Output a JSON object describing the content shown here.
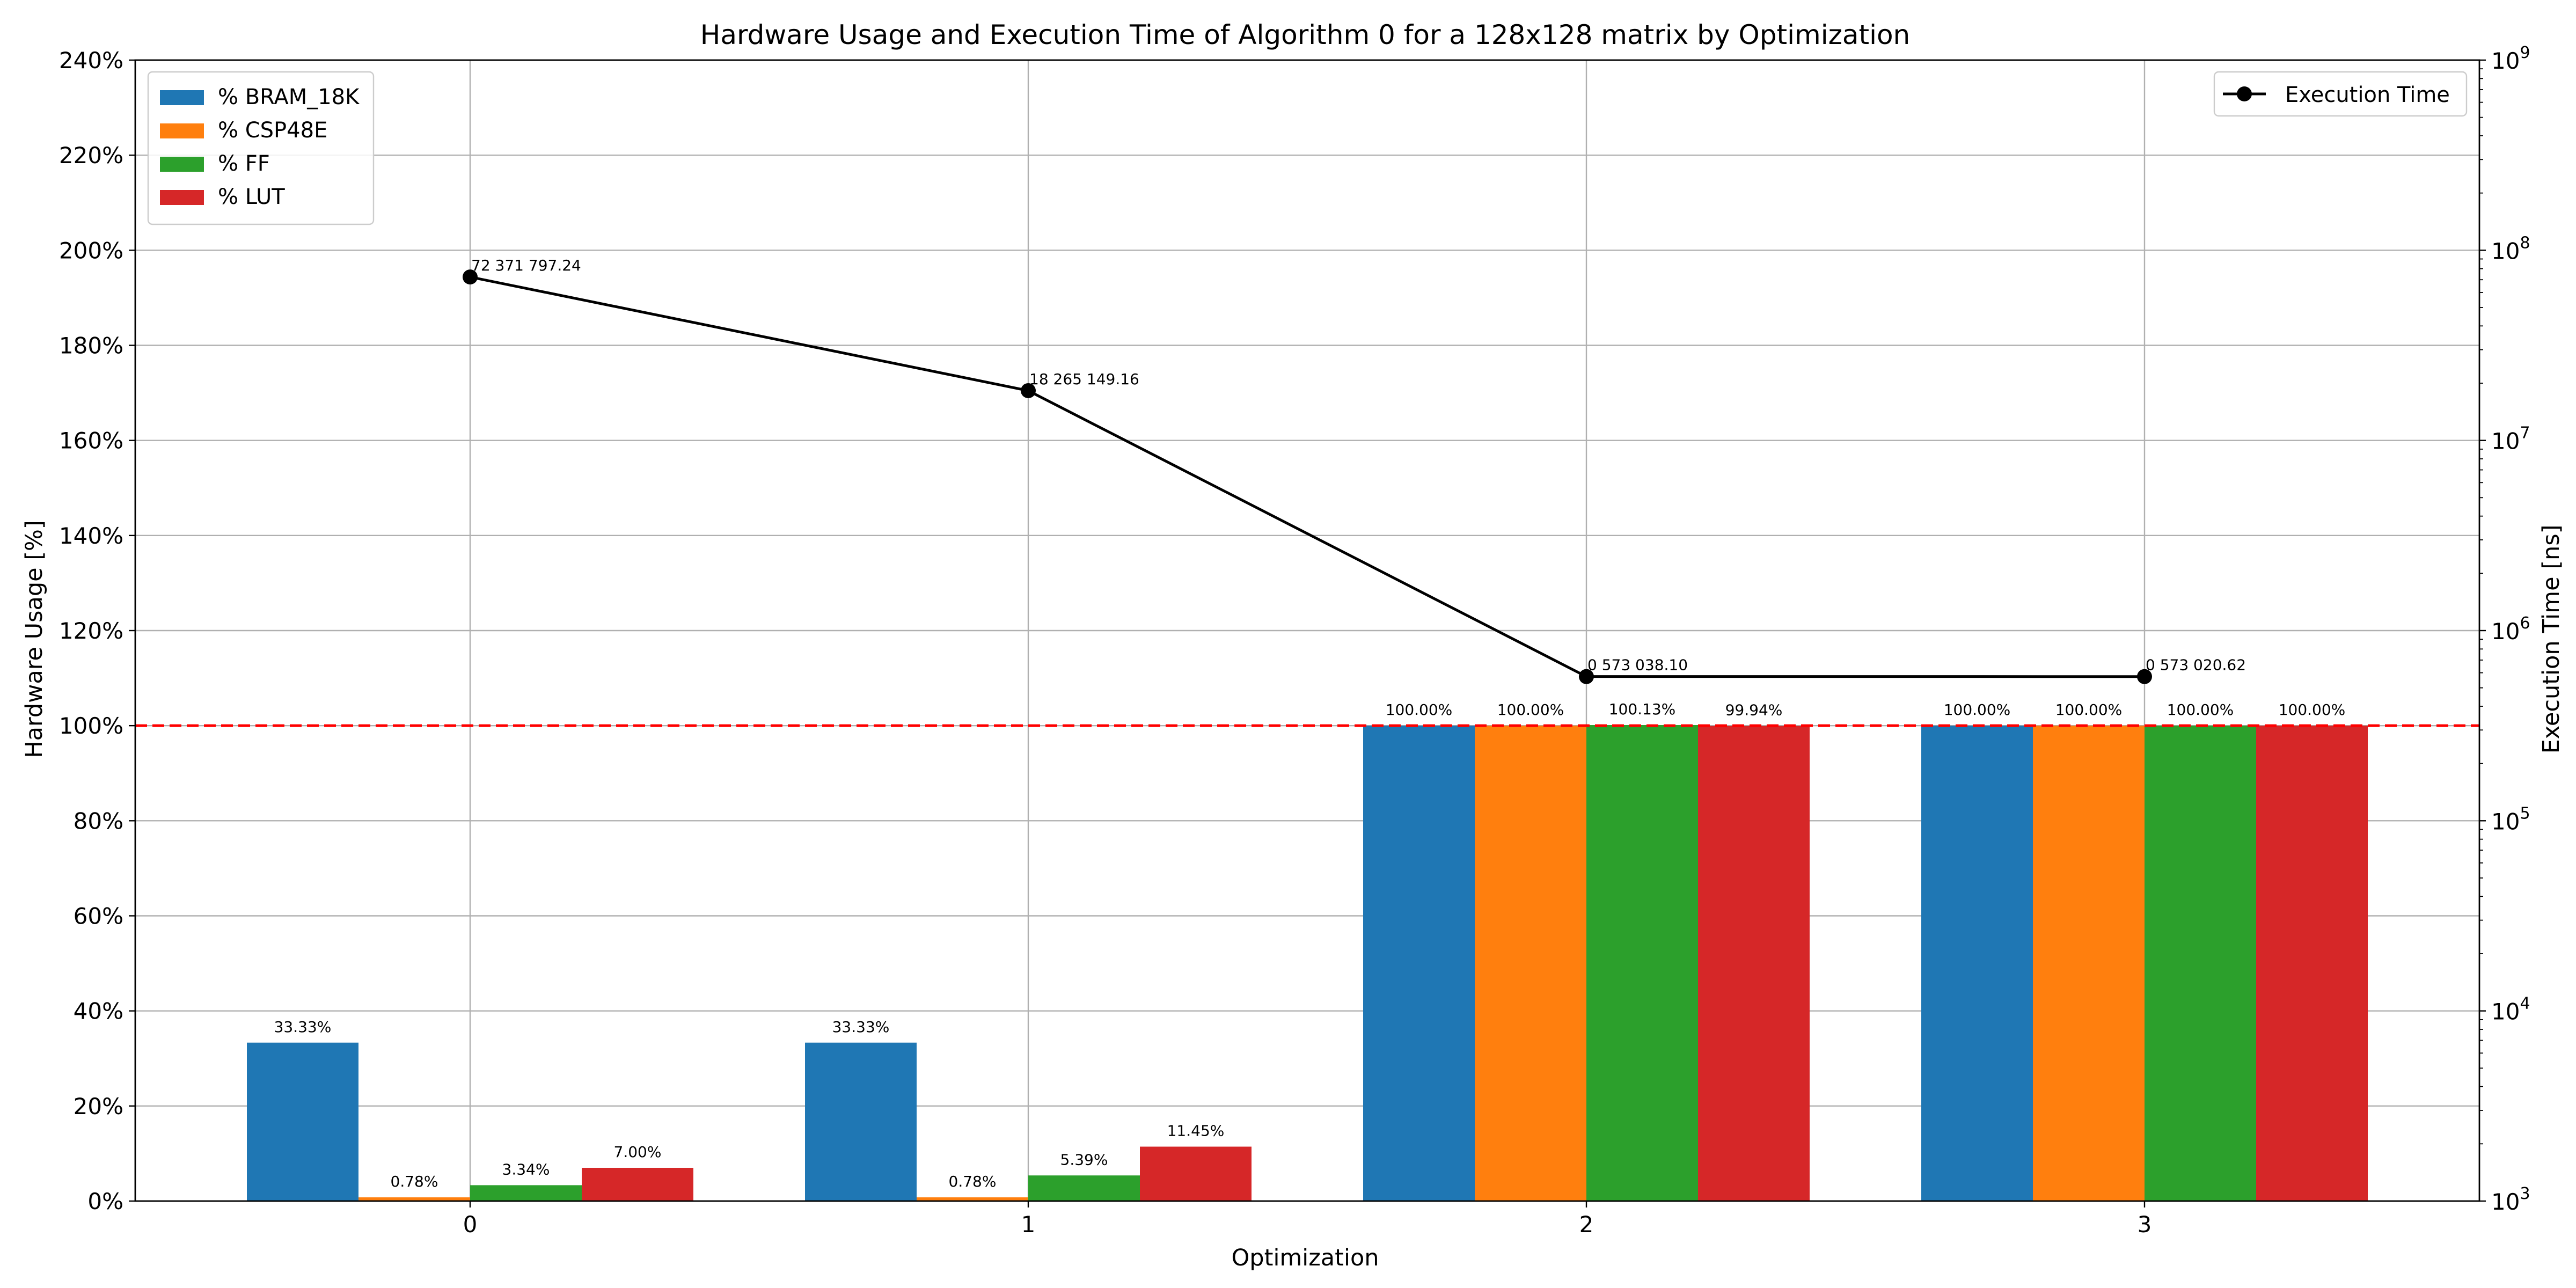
{
  "chart_data": {
    "type": "bar",
    "title": "Hardware Usage and Execution Time of Algorithm 0 for a 128x128 matrix by Optimization",
    "xlabel": "Optimization",
    "ylabel": "Hardware Usage [%]",
    "y2label": "Execution Time [ns]",
    "categories": [
      "0",
      "1",
      "2",
      "3"
    ],
    "ylim": [
      0,
      240
    ],
    "yticks": [
      0,
      20,
      40,
      60,
      80,
      100,
      120,
      140,
      160,
      180,
      200,
      220,
      240
    ],
    "ytick_labels": [
      "0%",
      "20%",
      "40%",
      "60%",
      "80%",
      "100%",
      "120%",
      "140%",
      "160%",
      "180%",
      "200%",
      "220%",
      "240%"
    ],
    "y2lim": [
      1000,
      1000000000
    ],
    "y2scale": "log",
    "y2ticks": [
      {
        "base": "10",
        "exp": "3"
      },
      {
        "base": "10",
        "exp": "4"
      },
      {
        "base": "10",
        "exp": "5"
      },
      {
        "base": "10",
        "exp": "6"
      },
      {
        "base": "10",
        "exp": "7"
      },
      {
        "base": "10",
        "exp": "8"
      },
      {
        "base": "10",
        "exp": "9"
      }
    ],
    "threshold": {
      "value": 100,
      "color": "#ff0000",
      "style": "dashed"
    },
    "grid": true,
    "series": [
      {
        "name": "% BRAM_18K",
        "color": "#1f77b4",
        "values": [
          33.33,
          33.33,
          100.0,
          100.0
        ],
        "labels": [
          "33.33%",
          "33.33%",
          "100.00%",
          "100.00%"
        ]
      },
      {
        "name": "% CSP48E",
        "color": "#ff7f0e",
        "values": [
          0.78,
          0.78,
          100.0,
          100.0
        ],
        "labels": [
          "0.78%",
          "0.78%",
          "100.00%",
          "100.00%"
        ]
      },
      {
        "name": "% FF",
        "color": "#2ca02c",
        "values": [
          3.34,
          5.39,
          100.13,
          100.0
        ],
        "labels": [
          "3.34%",
          "5.39%",
          "100.13%",
          "100.00%"
        ]
      },
      {
        "name": "% LUT",
        "color": "#d62728",
        "values": [
          7.0,
          11.45,
          99.94,
          100.0
        ],
        "labels": [
          "7.00%",
          "11.45%",
          "99.94%",
          "100.00%"
        ]
      }
    ],
    "line_series": {
      "name": "Execution Time",
      "color": "#000000",
      "values": [
        72371797.24,
        18265149.16,
        573038.1,
        573020.62
      ],
      "labels": [
        "72 371 797.24",
        "18 265 149.16",
        "0 573 038.10",
        "0 573 020.62"
      ]
    },
    "legend_bars_position": "upper-left",
    "legend_line_position": "upper-right"
  }
}
